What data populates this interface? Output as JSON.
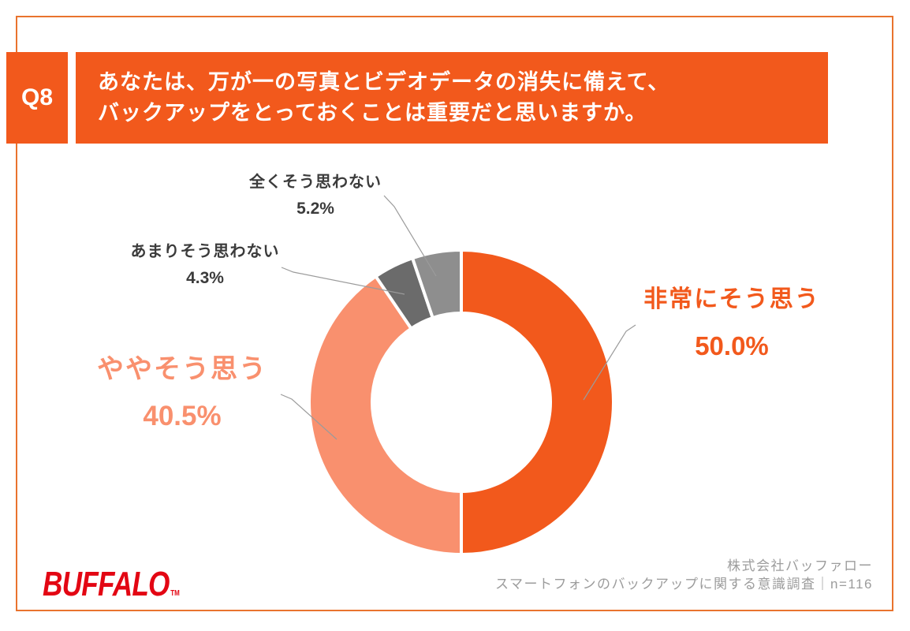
{
  "question": {
    "tag": "Q8",
    "line1": "あなたは、万が一の写真とビデオデータの消失に備えて、",
    "line2": "バックアップをとっておくことは重要だと思いますか。"
  },
  "chart_data": {
    "type": "pie",
    "subtype": "donut",
    "unit": "percent",
    "direction": "clockwise",
    "start_angle_deg": 0,
    "inner_radius_ratio": 0.585,
    "legend_position": "callouts",
    "sample_note": "n=116",
    "segments": [
      {
        "label": "非常にそう思う",
        "value": 50.0,
        "display": "50.0%",
        "color": "#F2591C"
      },
      {
        "label": "ややそう思う",
        "value": 40.5,
        "display": "40.5%",
        "color": "#F9906E"
      },
      {
        "label": "あまりそう思わない",
        "value": 4.3,
        "display": "4.3%",
        "color": "#6B6B6B"
      },
      {
        "label": "全くそう思わない",
        "value": 5.2,
        "display": "5.2%",
        "color": "#8E8E8E"
      }
    ]
  },
  "footer": {
    "logo_text": "BUFFALO",
    "logo_tm": "TM",
    "company": "株式会社バッファロー",
    "survey_note": "スマートフォンのバックアップに関する意識調査｜n=116"
  },
  "colors": {
    "accent_orange": "#F2591C",
    "accent_salmon": "#F9906E",
    "gray_dark": "#6B6B6B",
    "gray_mid": "#8E8E8E",
    "frame_border": "#E9732E",
    "label_dark": "#3B3B3B",
    "leader_line": "#9B9B9B",
    "logo_red": "#E30613",
    "footer_text": "#9C9C9C",
    "header_text": "#FFFFFF"
  }
}
